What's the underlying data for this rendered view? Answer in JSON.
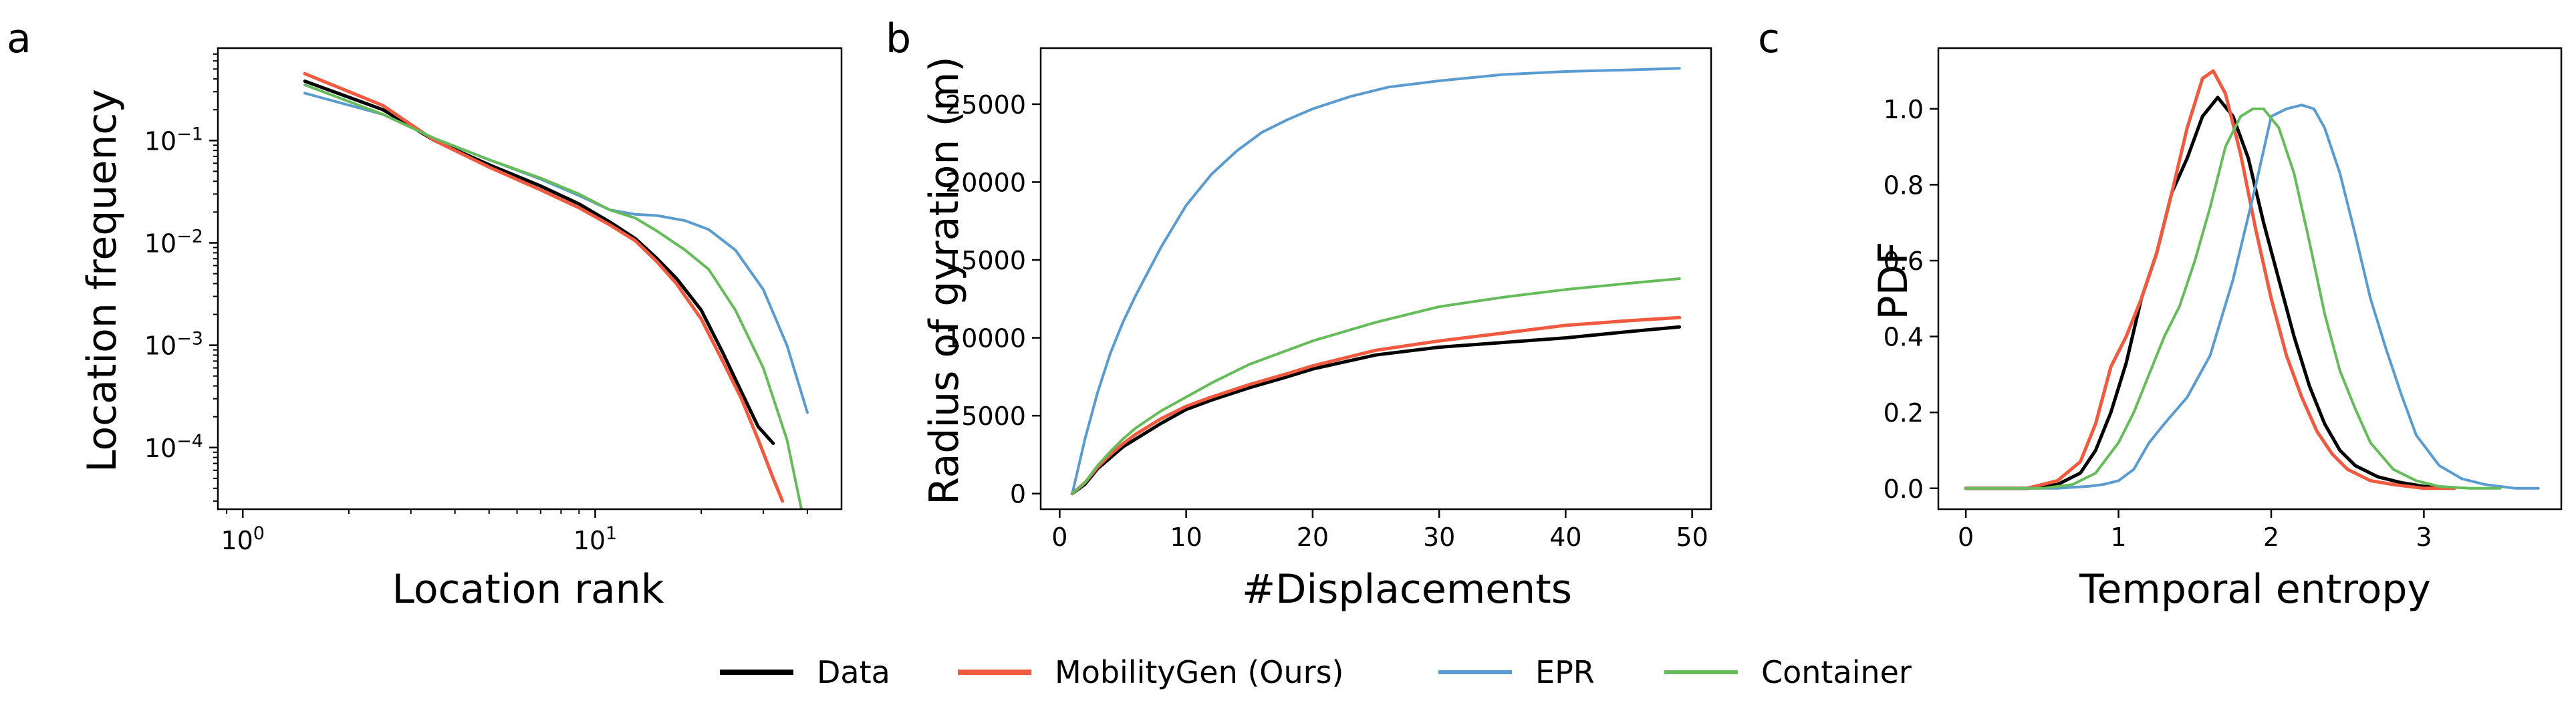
{
  "colors": {
    "data": "#000000",
    "mobilitygen": "#f05a40",
    "epr": "#5a9bd0",
    "container": "#66bb5a"
  },
  "legend": {
    "placement": "bottom-center",
    "entries": [
      "Data",
      "MobilityGen (Ours)",
      "EPR",
      "Container"
    ]
  },
  "chart_data": [
    {
      "panel_label": "a",
      "type": "line",
      "xlabel": "Location rank",
      "ylabel": "Location frequency",
      "xscale": "log",
      "yscale": "log",
      "xlim": [
        0.85,
        50
      ],
      "ylim": [
        2.5e-05,
        0.8
      ],
      "xticks": [
        {
          "value": 1,
          "label": "10^0"
        },
        {
          "value": 10,
          "label": "10^1"
        }
      ],
      "yticks": [
        {
          "value": 0.0001,
          "label": "10^-4"
        },
        {
          "value": 0.001,
          "label": "10^-3"
        },
        {
          "value": 0.01,
          "label": "10^-2"
        },
        {
          "value": 0.1,
          "label": "10^-1"
        }
      ],
      "series": [
        {
          "name": "Data",
          "color_key": "data",
          "width": 5,
          "x": [
            1.5,
            2.5,
            3.5,
            5,
            7,
            9,
            11,
            13,
            15,
            17,
            20,
            23,
            26,
            29,
            32
          ],
          "y": [
            0.38,
            0.2,
            0.1,
            0.058,
            0.036,
            0.024,
            0.016,
            0.011,
            0.007,
            0.0045,
            0.0022,
            0.00085,
            0.00035,
            0.00016,
            0.00011
          ]
        },
        {
          "name": "MobilityGen (Ours)",
          "color_key": "mobilitygen",
          "width": 5,
          "x": [
            1.5,
            2.5,
            3.5,
            5,
            7,
            9,
            11,
            13,
            15,
            17,
            20,
            23,
            26,
            29,
            32,
            34
          ],
          "y": [
            0.45,
            0.22,
            0.1,
            0.055,
            0.033,
            0.022,
            0.015,
            0.0105,
            0.0065,
            0.004,
            0.0018,
            0.0007,
            0.0003,
            0.00012,
            5e-05,
            3e-05
          ]
        },
        {
          "name": "EPR",
          "color_key": "epr",
          "width": 4,
          "x": [
            1.5,
            2.5,
            3.5,
            5,
            7,
            9,
            11,
            13,
            15,
            18,
            21,
            25,
            30,
            35,
            40
          ],
          "y": [
            0.29,
            0.18,
            0.105,
            0.065,
            0.042,
            0.029,
            0.021,
            0.019,
            0.0185,
            0.0165,
            0.0135,
            0.0085,
            0.0035,
            0.001,
            0.00022
          ]
        },
        {
          "name": "Container",
          "color_key": "container",
          "width": 4,
          "x": [
            1.5,
            2.5,
            3.5,
            5,
            7,
            9,
            11,
            13,
            15,
            18,
            21,
            25,
            30,
            35,
            39
          ],
          "y": [
            0.35,
            0.18,
            0.105,
            0.065,
            0.043,
            0.03,
            0.021,
            0.0175,
            0.013,
            0.0085,
            0.0055,
            0.0022,
            0.0006,
            0.00012,
            2e-05
          ]
        }
      ]
    },
    {
      "panel_label": "b",
      "type": "line",
      "xlabel": "#Displacements",
      "ylabel": "Radius of gyration (m)",
      "xlim": [
        -1.5,
        51.5
      ],
      "ylim": [
        -1000,
        28600
      ],
      "xticks": [
        0,
        10,
        20,
        30,
        40,
        50
      ],
      "yticks": [
        0,
        5000,
        10000,
        15000,
        20000,
        25000
      ],
      "series": [
        {
          "name": "Data",
          "color_key": "data",
          "width": 5,
          "x": [
            1,
            2,
            3,
            4,
            5,
            6,
            8,
            10,
            12,
            15,
            18,
            20,
            25,
            30,
            35,
            40,
            45,
            49
          ],
          "y": [
            0,
            600,
            1600,
            2300,
            3000,
            3500,
            4500,
            5400,
            6000,
            6800,
            7500,
            8000,
            8900,
            9400,
            9700,
            10000,
            10400,
            10700
          ]
        },
        {
          "name": "MobilityGen (Ours)",
          "color_key": "mobilitygen",
          "width": 5,
          "x": [
            1,
            2,
            3,
            4,
            5,
            6,
            8,
            10,
            12,
            15,
            18,
            20,
            25,
            30,
            35,
            40,
            45,
            49
          ],
          "y": [
            0,
            700,
            1700,
            2500,
            3200,
            3800,
            4800,
            5600,
            6200,
            7000,
            7700,
            8200,
            9200,
            9800,
            10300,
            10800,
            11100,
            11300
          ]
        },
        {
          "name": "EPR",
          "color_key": "epr",
          "width": 4,
          "x": [
            1,
            2,
            3,
            4,
            5,
            6,
            8,
            10,
            12,
            14,
            16,
            18,
            20,
            23,
            26,
            30,
            35,
            40,
            45,
            49
          ],
          "y": [
            0,
            3500,
            6500,
            9000,
            11000,
            12700,
            15800,
            18500,
            20500,
            22000,
            23200,
            24000,
            24700,
            25500,
            26100,
            26500,
            26900,
            27100,
            27200,
            27300
          ]
        },
        {
          "name": "Container",
          "color_key": "container",
          "width": 4,
          "x": [
            1,
            2,
            3,
            4,
            5,
            6,
            8,
            10,
            12,
            15,
            18,
            20,
            25,
            30,
            35,
            40,
            45,
            49
          ],
          "y": [
            0,
            700,
            1800,
            2700,
            3500,
            4200,
            5300,
            6200,
            7100,
            8300,
            9200,
            9800,
            11000,
            12000,
            12600,
            13100,
            13500,
            13800
          ]
        }
      ]
    },
    {
      "panel_label": "c",
      "type": "line",
      "xlabel": "Temporal entropy",
      "ylabel": "PDF",
      "xlim": [
        -0.18,
        3.9
      ],
      "ylim": [
        -0.055,
        1.16
      ],
      "xticks": [
        0,
        1,
        2,
        3
      ],
      "yticks": [
        0.0,
        0.2,
        0.4,
        0.6,
        0.8,
        1.0
      ],
      "ytick_labels": [
        "0.0",
        "0.2",
        "0.4",
        "0.6",
        "0.8",
        "1.0"
      ],
      "series": [
        {
          "name": "Data",
          "color_key": "data",
          "width": 5,
          "x": [
            0,
            0.4,
            0.6,
            0.75,
            0.85,
            0.95,
            1.05,
            1.15,
            1.25,
            1.35,
            1.45,
            1.55,
            1.65,
            1.75,
            1.85,
            1.95,
            2.05,
            2.15,
            2.25,
            2.35,
            2.45,
            2.55,
            2.7,
            2.85,
            3.0,
            3.2
          ],
          "y": [
            0,
            0,
            0.01,
            0.04,
            0.1,
            0.2,
            0.33,
            0.5,
            0.62,
            0.78,
            0.87,
            0.98,
            1.03,
            0.98,
            0.87,
            0.7,
            0.55,
            0.4,
            0.27,
            0.17,
            0.1,
            0.06,
            0.03,
            0.015,
            0.005,
            0
          ]
        },
        {
          "name": "MobilityGen (Ours)",
          "color_key": "mobilitygen",
          "width": 5,
          "x": [
            0,
            0.4,
            0.6,
            0.75,
            0.85,
            0.95,
            1.05,
            1.15,
            1.25,
            1.35,
            1.45,
            1.55,
            1.62,
            1.7,
            1.8,
            1.9,
            2.0,
            2.1,
            2.2,
            2.3,
            2.4,
            2.5,
            2.65,
            2.8,
            3.0,
            3.2
          ],
          "y": [
            0,
            0,
            0.02,
            0.07,
            0.17,
            0.32,
            0.4,
            0.5,
            0.62,
            0.78,
            0.95,
            1.08,
            1.1,
            1.04,
            0.88,
            0.68,
            0.5,
            0.35,
            0.24,
            0.15,
            0.09,
            0.05,
            0.02,
            0.01,
            0,
            0
          ]
        },
        {
          "name": "EPR",
          "color_key": "epr",
          "width": 4,
          "x": [
            0,
            0.6,
            0.8,
            0.9,
            1.0,
            1.1,
            1.2,
            1.3,
            1.45,
            1.6,
            1.75,
            1.9,
            2.0,
            2.1,
            2.2,
            2.28,
            2.35,
            2.45,
            2.55,
            2.65,
            2.75,
            2.85,
            2.95,
            3.1,
            3.25,
            3.4,
            3.6,
            3.75
          ],
          "y": [
            0,
            0,
            0.005,
            0.01,
            0.02,
            0.05,
            0.12,
            0.17,
            0.24,
            0.35,
            0.55,
            0.8,
            0.98,
            1.0,
            1.01,
            1.0,
            0.95,
            0.83,
            0.67,
            0.5,
            0.37,
            0.25,
            0.14,
            0.06,
            0.025,
            0.01,
            0,
            0
          ]
        },
        {
          "name": "Container",
          "color_key": "container",
          "width": 4,
          "x": [
            0,
            0.5,
            0.7,
            0.85,
            1.0,
            1.1,
            1.2,
            1.3,
            1.4,
            1.5,
            1.6,
            1.7,
            1.8,
            1.88,
            1.95,
            2.05,
            2.15,
            2.25,
            2.35,
            2.45,
            2.55,
            2.65,
            2.8,
            2.95,
            3.1,
            3.3,
            3.5
          ],
          "y": [
            0,
            0,
            0.01,
            0.04,
            0.12,
            0.2,
            0.3,
            0.4,
            0.48,
            0.6,
            0.74,
            0.9,
            0.98,
            1.0,
            1.0,
            0.95,
            0.83,
            0.65,
            0.46,
            0.31,
            0.21,
            0.12,
            0.05,
            0.02,
            0.005,
            0,
            0
          ]
        }
      ]
    }
  ]
}
